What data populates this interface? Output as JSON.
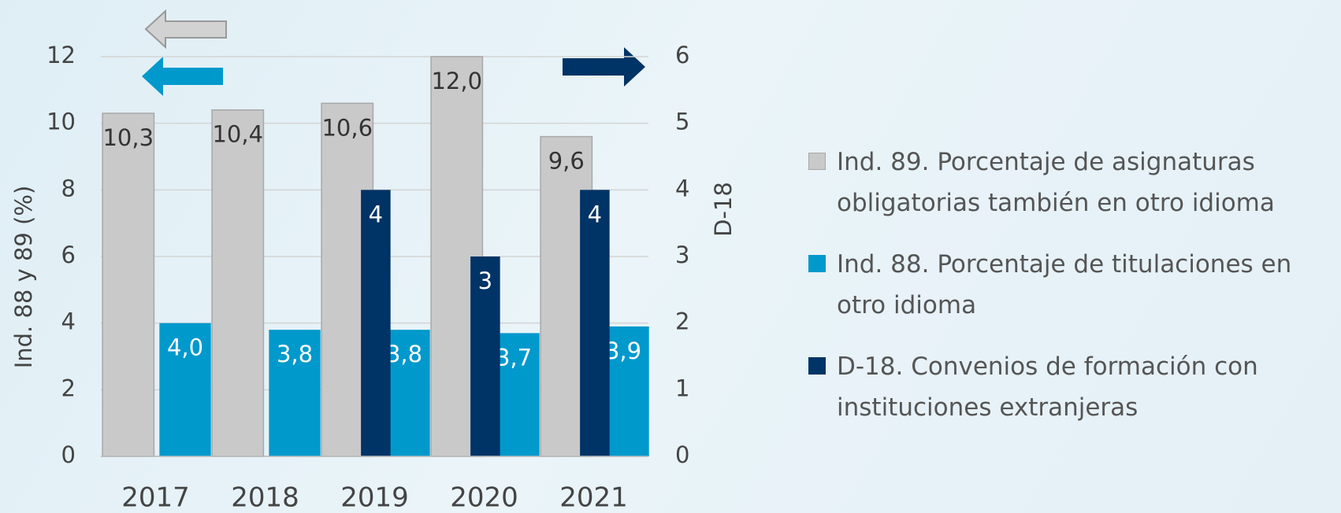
{
  "chart_data": {
    "type": "bar",
    "categories": [
      "2017",
      "2018",
      "2019",
      "2020",
      "2021"
    ],
    "series": [
      {
        "name": "Ind. 89. Porcentaje de asignaturas obligatorias también en otro idioma",
        "color": "#c9c9c9",
        "values": [
          10.3,
          10.4,
          10.6,
          12.0,
          9.6
        ],
        "value_labels": [
          "10,3",
          "10,4",
          "10,6",
          "12,0",
          "9,6"
        ]
      },
      {
        "name": "Ind. 88. Porcentaje de titulaciones en otro idioma",
        "color": "#0099cc",
        "values": [
          4.0,
          3.8,
          3.8,
          3.7,
          3.9
        ],
        "value_labels": [
          "4,0",
          "3,8",
          "3,8",
          "3,7",
          "3,9"
        ]
      },
      {
        "name": "D-18. Convenios de formación con instituciones extranjeras",
        "color": "#003366",
        "axis": "y2",
        "values": [
          null,
          null,
          4,
          3,
          4
        ]
      }
    ],
    "ylabel": "Ind. 88 y 89 (%)",
    "y2label": "D-18",
    "ylim": [
      0,
      12
    ],
    "yticks": [
      0,
      2,
      4,
      6,
      8,
      10,
      12
    ],
    "y2lim": [
      0,
      6
    ],
    "y2ticks": [
      0,
      1,
      2,
      3,
      4,
      5,
      6
    ],
    "grid": true,
    "legend": "right"
  }
}
